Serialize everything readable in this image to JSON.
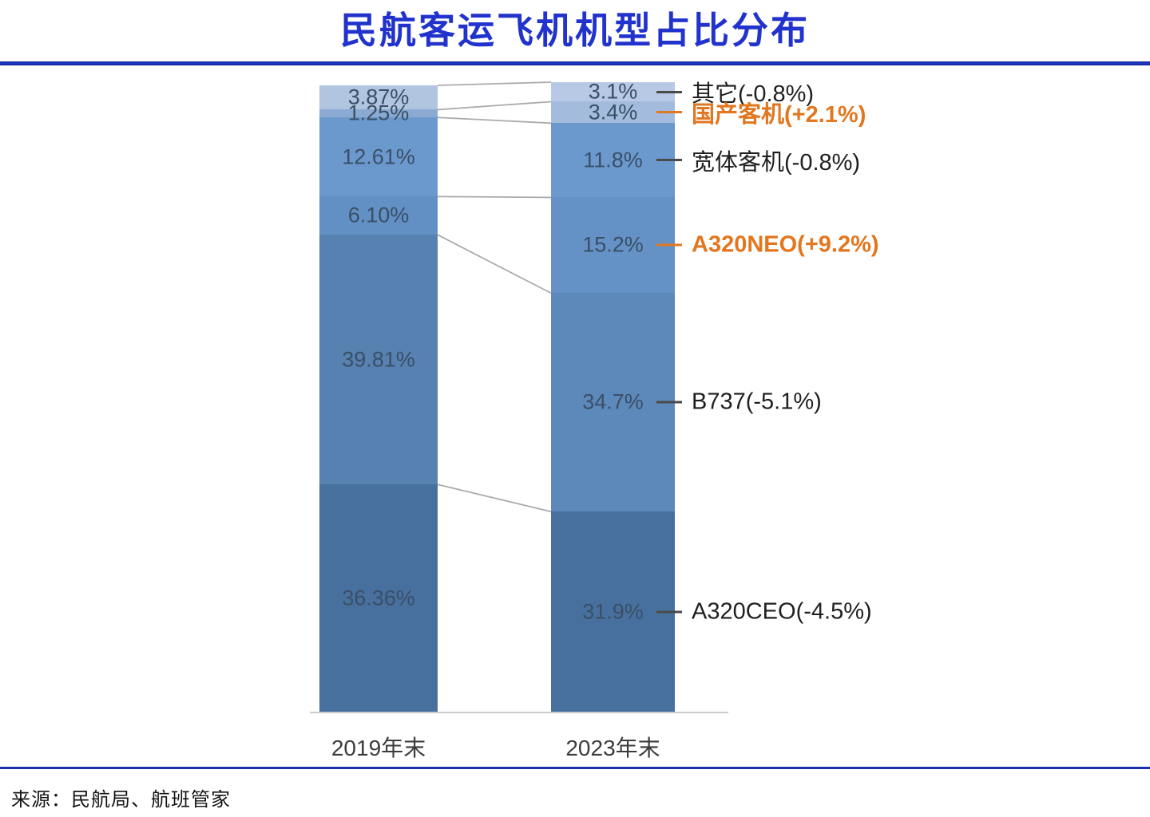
{
  "page": {
    "title": "民航客运飞机机型占比分布",
    "source": "来源：民航局、航班管家"
  },
  "colors": {
    "title_blue": "#2133cc",
    "rule_blue": "#1d39cb",
    "value_label": "#3a4f66",
    "category_label": "#1f1f1f",
    "highlight_orange": "#e2771f",
    "connector_gray": "#adaba8",
    "axis_gray": "#cbcbcb",
    "left_segment_colors": [
      "#b1c4e0",
      "#8aaad2",
      "#6b99ce",
      "#6290c4",
      "#5681b0",
      "#48709e"
    ],
    "right_segment_colors": [
      "#b7c9e5",
      "#a3bbdd",
      "#6b99ce",
      "#6492c6",
      "#5d89ba",
      "#48709e"
    ]
  },
  "chart_data": {
    "type": "bar",
    "variant": "100%-stacked-comparison",
    "title": "民航客运飞机机型占比分布",
    "categories": [
      "2019年末",
      "2023年末"
    ],
    "stack_order": "top-to-bottom",
    "legend": "none",
    "y_axis_hidden": true,
    "series": [
      {
        "name": "其它",
        "values": [
          3.87,
          3.1
        ],
        "labels": [
          "3.87%",
          "3.1%"
        ],
        "annotation": "其它(-0.8%)",
        "highlight": false
      },
      {
        "name": "国产客机",
        "values": [
          1.25,
          3.4
        ],
        "labels": [
          "1.25%",
          "3.4%"
        ],
        "annotation": "国产客机(+2.1%)",
        "highlight": true
      },
      {
        "name": "宽体客机",
        "values": [
          12.61,
          11.8
        ],
        "labels": [
          "12.61%",
          "11.8%"
        ],
        "annotation": "宽体客机(-0.8%)",
        "highlight": false
      },
      {
        "name": "A320NEO",
        "values": [
          6.1,
          15.2
        ],
        "labels": [
          "6.10%",
          "15.2%"
        ],
        "annotation": "A320NEO(+9.2%)",
        "highlight": true
      },
      {
        "name": "B737",
        "values": [
          39.81,
          34.7
        ],
        "labels": [
          "39.81%",
          "34.7%"
        ],
        "annotation": "B737(-5.1%)",
        "highlight": false
      },
      {
        "name": "A320CEO",
        "values": [
          36.36,
          31.9
        ],
        "labels": [
          "36.36%",
          "31.9%"
        ],
        "annotation": "A320CEO(-4.5%)",
        "highlight": false
      }
    ]
  }
}
